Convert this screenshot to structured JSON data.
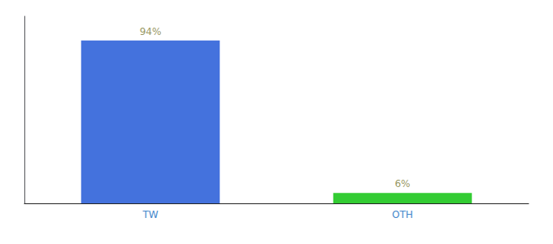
{
  "chart_data": {
    "type": "bar",
    "categories": [
      "TW",
      "OTH"
    ],
    "values": [
      94,
      6
    ],
    "value_labels": [
      "94%",
      "6%"
    ],
    "colors": [
      "#4472dd",
      "#33cc33"
    ],
    "ylim": [
      0,
      108
    ],
    "grid": false,
    "data_labels": true,
    "tick_labels": "x"
  }
}
